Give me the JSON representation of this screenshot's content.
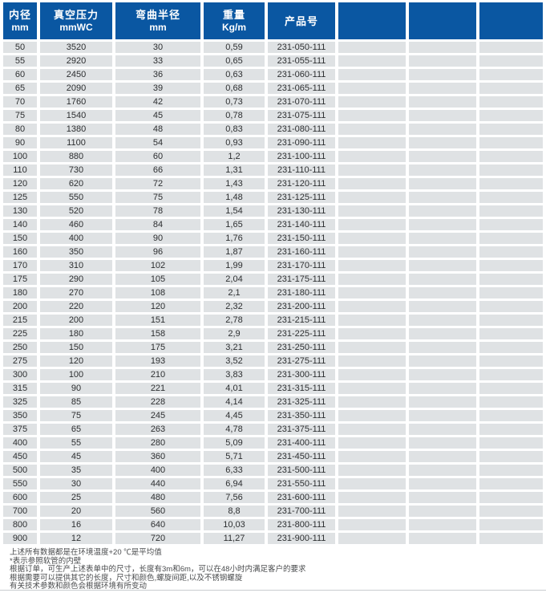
{
  "table": {
    "columns": [
      {
        "line1": "内径",
        "line2": "mm"
      },
      {
        "line1": "真空压力",
        "line2": "mmWC"
      },
      {
        "line1": "弯曲半径",
        "line2": "mm"
      },
      {
        "line1": "重量",
        "line2": "Kg/m"
      },
      {
        "line1": "产品号",
        "line2": ""
      },
      {
        "line1": "",
        "line2": ""
      },
      {
        "line1": "",
        "line2": ""
      },
      {
        "line1": "",
        "line2": ""
      }
    ],
    "column_semantics": [
      "inner-diameter-mm",
      "vacuum-pressure-mmwc",
      "bend-radius-mm",
      "weight-kg-per-m",
      "product-number",
      "empty",
      "empty",
      "empty"
    ],
    "rows": [
      [
        "50",
        "3520",
        "30",
        "0,59",
        "231-050-111"
      ],
      [
        "55",
        "2920",
        "33",
        "0,65",
        "231-055-111"
      ],
      [
        "60",
        "2450",
        "36",
        "0,63",
        "231-060-111"
      ],
      [
        "65",
        "2090",
        "39",
        "0,68",
        "231-065-111"
      ],
      [
        "70",
        "1760",
        "42",
        "0,73",
        "231-070-111"
      ],
      [
        "75",
        "1540",
        "45",
        "0,78",
        "231-075-111"
      ],
      [
        "80",
        "1380",
        "48",
        "0,83",
        "231-080-111"
      ],
      [
        "90",
        "1100",
        "54",
        "0,93",
        "231-090-111"
      ],
      [
        "100",
        "880",
        "60",
        "1,2",
        "231-100-111"
      ],
      [
        "110",
        "730",
        "66",
        "1,31",
        "231-110-111"
      ],
      [
        "120",
        "620",
        "72",
        "1,43",
        "231-120-111"
      ],
      [
        "125",
        "550",
        "75",
        "1,48",
        "231-125-111"
      ],
      [
        "130",
        "520",
        "78",
        "1,54",
        "231-130-111"
      ],
      [
        "140",
        "460",
        "84",
        "1,65",
        "231-140-111"
      ],
      [
        "150",
        "400",
        "90",
        "1,76",
        "231-150-111"
      ],
      [
        "160",
        "350",
        "96",
        "1,87",
        "231-160-111"
      ],
      [
        "170",
        "310",
        "102",
        "1,99",
        "231-170-111"
      ],
      [
        "175",
        "290",
        "105",
        "2,04",
        "231-175-111"
      ],
      [
        "180",
        "270",
        "108",
        "2,1",
        "231-180-111"
      ],
      [
        "200",
        "220",
        "120",
        "2,32",
        "231-200-111"
      ],
      [
        "215",
        "200",
        "151",
        "2,78",
        "231-215-111"
      ],
      [
        "225",
        "180",
        "158",
        "2,9",
        "231-225-111"
      ],
      [
        "250",
        "150",
        "175",
        "3,21",
        "231-250-111"
      ],
      [
        "275",
        "120",
        "193",
        "3,52",
        "231-275-111"
      ],
      [
        "300",
        "100",
        "210",
        "3,83",
        "231-300-111"
      ],
      [
        "315",
        "90",
        "221",
        "4,01",
        "231-315-111"
      ],
      [
        "325",
        "85",
        "228",
        "4,14",
        "231-325-111"
      ],
      [
        "350",
        "75",
        "245",
        "4,45",
        "231-350-111"
      ],
      [
        "375",
        "65",
        "263",
        "4,78",
        "231-375-111"
      ],
      [
        "400",
        "55",
        "280",
        "5,09",
        "231-400-111"
      ],
      [
        "450",
        "45",
        "360",
        "5,71",
        "231-450-111"
      ],
      [
        "500",
        "35",
        "400",
        "6,33",
        "231-500-111"
      ],
      [
        "550",
        "30",
        "440",
        "6,94",
        "231-550-111"
      ],
      [
        "600",
        "25",
        "480",
        "7,56",
        "231-600-111"
      ],
      [
        "700",
        "20",
        "560",
        "8,8",
        "231-700-111"
      ],
      [
        "800",
        "16",
        "640",
        "10,03",
        "231-800-111"
      ],
      [
        "900",
        "12",
        "720",
        "11,27",
        "231-900-111"
      ]
    ]
  },
  "footnotes": [
    "上述所有数据都是在环境温度+20 ℃是平均值",
    "*表示参照软管的内壁",
    "根据订单，可生产上述表单中的尺寸，长度有3m和6m，可以在48小时内满足客户的要求",
    "根据需要可以提供其它的长度，尺寸和颜色,螺旋间距,以及不锈钢螺旋",
    "有关技术参数和颜色会根据环境有所变动"
  ],
  "colors": {
    "header_background": "#0a57a2",
    "header_text": "#ffffff",
    "row_background": "#dfe2e4",
    "cell_text": "#2d2f31",
    "footnote_text": "#494b4d"
  }
}
